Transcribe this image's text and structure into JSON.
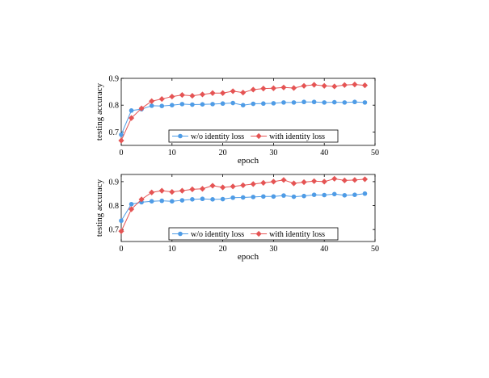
{
  "colors": {
    "blue": "#4f9ce6",
    "red": "#e55454",
    "axis": "#000000"
  },
  "chart_data": [
    {
      "type": "line",
      "xlabel": "epoch",
      "ylabel": "testing accuracy",
      "xlim": [
        0,
        50
      ],
      "ylim": [
        0.65,
        0.9
      ],
      "xticks": [
        0,
        10,
        20,
        30,
        40,
        50
      ],
      "yticks": [
        0.7,
        0.8,
        0.9
      ],
      "xtick_labels": [
        "0",
        "10",
        "20",
        "30",
        "40",
        "50"
      ],
      "ytick_labels": [
        "0.7",
        "0.8",
        "0.9"
      ],
      "grid": false,
      "legend": "bottom-right",
      "x": [
        0,
        2,
        4,
        6,
        8,
        10,
        12,
        14,
        16,
        18,
        20,
        22,
        24,
        26,
        28,
        30,
        32,
        34,
        36,
        38,
        40,
        42,
        44,
        46,
        48
      ],
      "series": [
        {
          "name": "w/o identity loss",
          "marker": "circle",
          "color": "#4f9ce6",
          "values": [
            0.69,
            0.78,
            0.785,
            0.798,
            0.797,
            0.8,
            0.804,
            0.802,
            0.803,
            0.804,
            0.806,
            0.808,
            0.8,
            0.805,
            0.806,
            0.807,
            0.81,
            0.81,
            0.812,
            0.812,
            0.81,
            0.811,
            0.81,
            0.812,
            0.81
          ]
        },
        {
          "name": "with identity loss",
          "marker": "diamond",
          "color": "#e55454",
          "values": [
            0.668,
            0.752,
            0.788,
            0.815,
            0.823,
            0.832,
            0.838,
            0.835,
            0.84,
            0.845,
            0.845,
            0.852,
            0.847,
            0.858,
            0.862,
            0.863,
            0.866,
            0.864,
            0.872,
            0.876,
            0.872,
            0.87,
            0.875,
            0.877,
            0.874
          ]
        }
      ]
    },
    {
      "type": "line",
      "xlabel": "epoch",
      "ylabel": "testing accuracy",
      "xlim": [
        0,
        50
      ],
      "ylim": [
        0.65,
        0.93
      ],
      "xticks": [
        0,
        10,
        20,
        30,
        40,
        50
      ],
      "yticks": [
        0.7,
        0.8,
        0.9
      ],
      "xtick_labels": [
        "0",
        "10",
        "20",
        "30",
        "40",
        "50"
      ],
      "ytick_labels": [
        "0.7",
        "0.8",
        "0.9"
      ],
      "grid": false,
      "legend": "bottom-right",
      "x": [
        0,
        2,
        4,
        6,
        8,
        10,
        12,
        14,
        16,
        18,
        20,
        22,
        24,
        26,
        28,
        30,
        32,
        34,
        36,
        38,
        40,
        42,
        44,
        46,
        48
      ],
      "series": [
        {
          "name": "w/o identity loss",
          "marker": "circle",
          "color": "#4f9ce6",
          "values": [
            0.737,
            0.806,
            0.814,
            0.818,
            0.82,
            0.818,
            0.822,
            0.826,
            0.828,
            0.826,
            0.827,
            0.833,
            0.834,
            0.836,
            0.838,
            0.838,
            0.842,
            0.837,
            0.84,
            0.845,
            0.844,
            0.848,
            0.843,
            0.845,
            0.85
          ]
        },
        {
          "name": "with identity loss",
          "marker": "diamond",
          "color": "#e55454",
          "values": [
            0.693,
            0.785,
            0.826,
            0.855,
            0.862,
            0.857,
            0.862,
            0.868,
            0.87,
            0.883,
            0.876,
            0.88,
            0.885,
            0.89,
            0.895,
            0.9,
            0.907,
            0.893,
            0.898,
            0.902,
            0.9,
            0.912,
            0.905,
            0.907,
            0.91
          ]
        }
      ]
    }
  ]
}
